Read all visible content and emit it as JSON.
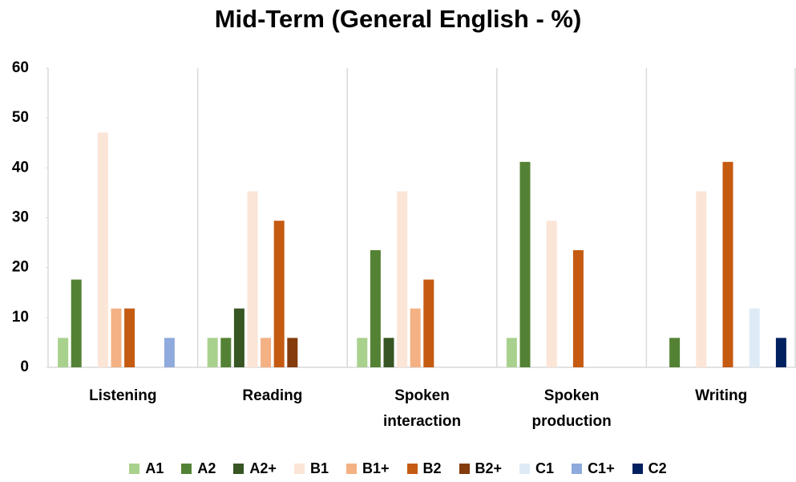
{
  "chart_data": {
    "type": "bar",
    "title": "Mid-Term (General English - %)",
    "categories": [
      "Listening",
      "Reading",
      "Spoken interaction",
      "Spoken production",
      "Writing"
    ],
    "series": [
      {
        "name": "A1",
        "color": "#a9d18e",
        "values": [
          5.9,
          5.9,
          5.9,
          5.9,
          0
        ]
      },
      {
        "name": "A2",
        "color": "#548235",
        "values": [
          17.6,
          5.9,
          23.5,
          41.2,
          5.9
        ]
      },
      {
        "name": "A2+",
        "color": "#375623",
        "values": [
          0,
          11.8,
          5.9,
          0,
          0
        ]
      },
      {
        "name": "B1",
        "color": "#fbe5d6",
        "values": [
          47.1,
          35.3,
          35.3,
          29.4,
          35.3
        ]
      },
      {
        "name": "B1+",
        "color": "#f4b183",
        "values": [
          11.8,
          5.9,
          11.8,
          0,
          0
        ]
      },
      {
        "name": "B2",
        "color": "#c55a11",
        "values": [
          11.8,
          29.4,
          17.6,
          23.5,
          41.2
        ]
      },
      {
        "name": "B2+",
        "color": "#843c0c",
        "values": [
          0,
          5.9,
          0,
          0,
          0
        ]
      },
      {
        "name": "C1",
        "color": "#deebf7",
        "values": [
          0,
          0,
          0,
          0,
          11.8
        ]
      },
      {
        "name": "C1+",
        "color": "#8faadc",
        "values": [
          5.9,
          0,
          0,
          0,
          0
        ]
      },
      {
        "name": "C2",
        "color": "#002060",
        "values": [
          0,
          0,
          0,
          0,
          5.9
        ]
      }
    ],
    "ylim": [
      0,
      60
    ],
    "yticks": [
      0,
      10,
      20,
      30,
      40,
      50,
      60
    ],
    "legend": "bottom"
  }
}
